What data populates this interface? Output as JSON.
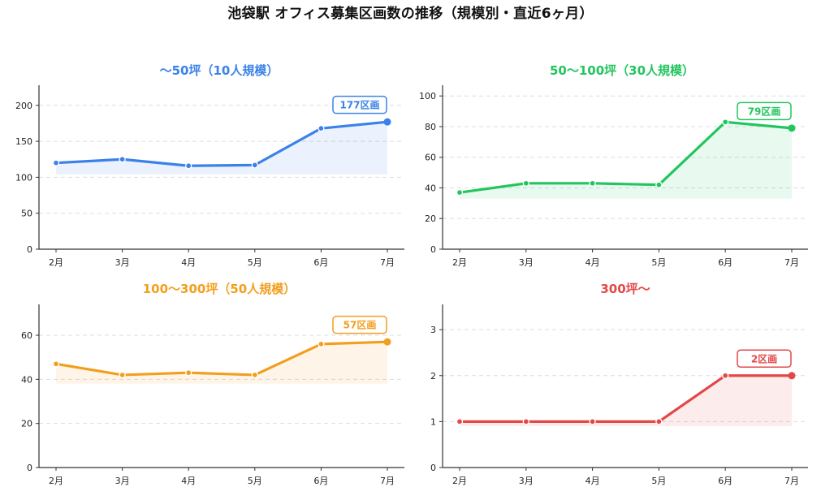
{
  "title": "池袋駅 オフィス募集区画数の推移（規模別・直近6ヶ月）",
  "chart_data": [
    {
      "type": "line",
      "title": "〜50坪（10人規模）",
      "color": "#3b82e8",
      "categories": [
        "2月",
        "3月",
        "4月",
        "5月",
        "6月",
        "7月"
      ],
      "values": [
        120,
        125,
        116,
        117,
        168,
        177
      ],
      "yticks": [
        0,
        50,
        100,
        150,
        200
      ],
      "ylim": [
        0,
        228
      ],
      "fill_base": 104,
      "badge": "177区画"
    },
    {
      "type": "line",
      "title": "50〜100坪（30人規模）",
      "color": "#22c55e",
      "categories": [
        "2月",
        "3月",
        "4月",
        "5月",
        "6月",
        "7月"
      ],
      "values": [
        37,
        43,
        43,
        42,
        83,
        79
      ],
      "yticks": [
        0,
        20,
        40,
        60,
        80,
        100
      ],
      "ylim": [
        0,
        107
      ],
      "fill_base": 33,
      "badge": "79区画"
    },
    {
      "type": "line",
      "title": "100〜300坪（50人規模）",
      "color": "#f29f1e",
      "categories": [
        "2月",
        "3月",
        "4月",
        "5月",
        "6月",
        "7月"
      ],
      "values": [
        47,
        42,
        43,
        42,
        56,
        57
      ],
      "yticks": [
        0,
        20,
        40,
        60
      ],
      "ylim": [
        0,
        74
      ],
      "fill_base": 38,
      "badge": "57区画"
    },
    {
      "type": "line",
      "title": "300坪〜",
      "color": "#e34848",
      "categories": [
        "2月",
        "3月",
        "4月",
        "5月",
        "6月",
        "7月"
      ],
      "values": [
        1,
        1,
        1,
        1,
        2,
        2
      ],
      "yticks": [
        0,
        1,
        2,
        3
      ],
      "ylim": [
        0,
        3.55
      ],
      "fill_base": 0.9,
      "badge": "2区画"
    }
  ]
}
